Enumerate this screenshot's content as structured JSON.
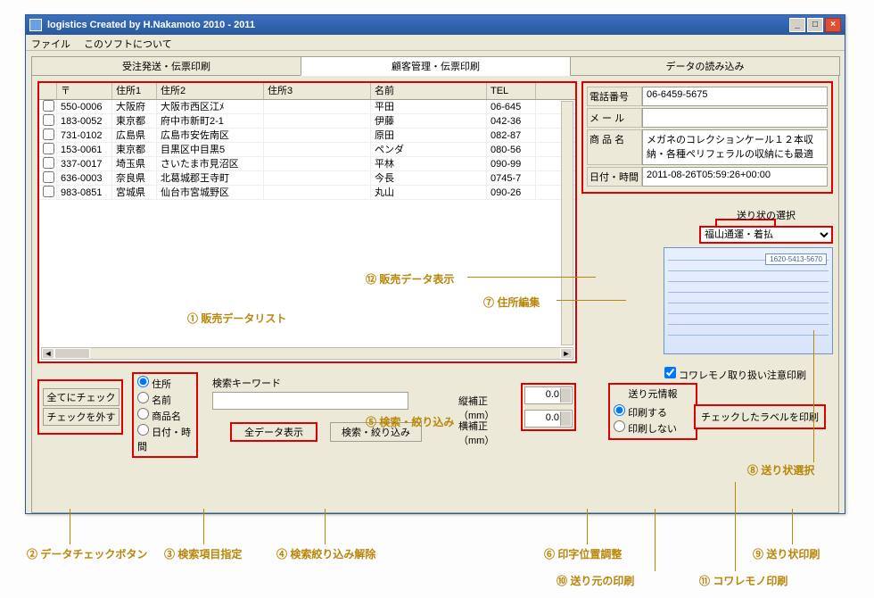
{
  "window": {
    "title": "logistics Created by H.Nakamoto 2010 - 2011"
  },
  "menu": {
    "file": "ファイル",
    "about": "このソフトについて"
  },
  "tabs": {
    "order": "受注発送・伝票印刷",
    "customer": "顧客管理・伝票印刷",
    "import": "データの読み込み"
  },
  "table": {
    "cols": {
      "zip": "〒",
      "a1": "住所1",
      "a2": "住所2",
      "a3": "住所3",
      "name": "名前",
      "tel": "TEL"
    },
    "rows": [
      {
        "zip": "550-0006",
        "a1": "大阪府",
        "a2": "大阪市西区江ﾒ",
        "a3": "",
        "name": "平田",
        "tel": "06-645"
      },
      {
        "zip": "183-0052",
        "a1": "東京都",
        "a2": "府中市新町2-1",
        "a3": "",
        "name": "伊藤",
        "tel": "042-36"
      },
      {
        "zip": "731-0102",
        "a1": "広島県",
        "a2": "広島市安佐南区",
        "a3": "",
        "name": "原田",
        "tel": "082-87"
      },
      {
        "zip": "153-0061",
        "a1": "東京都",
        "a2": "目黒区中目黒5",
        "a3": "",
        "name": "ペンダ",
        "tel": "080-56"
      },
      {
        "zip": "337-0017",
        "a1": "埼玉県",
        "a2": "さいたま市見沼区",
        "a3": "",
        "name": "平林",
        "tel": "090-99"
      },
      {
        "zip": "636-0003",
        "a1": "奈良県",
        "a2": "北葛城郡王寺町",
        "a3": "",
        "name": "今長",
        "tel": "0745-7"
      },
      {
        "zip": "983-0851",
        "a1": "宮城県",
        "a2": "仙台市宮城野区",
        "a3": "",
        "name": "丸山",
        "tel": "090-26"
      }
    ]
  },
  "detail": {
    "tel_label": "電話番号",
    "tel": "06-6459-5675",
    "mail_label": "メ ー ル",
    "mail": "",
    "product_label": "商 品 名",
    "product": "メガネのコレクションケール１２本収納・各種ペリフェラルの収納にも最適",
    "date_label": "日付・時間",
    "date": "2011-08-26T05:59:26+00:00"
  },
  "edit_address": "住所編集",
  "slip_select": {
    "label": "送り状の選択",
    "value": "福山通運・着払"
  },
  "slip": {
    "tracking": "1620-5413-5670"
  },
  "checkbtns": {
    "all": "全てにチェック",
    "none": "チェックを外す"
  },
  "search": {
    "radios": {
      "addr": "住所",
      "name": "名前",
      "product": "商品名",
      "date": "日付・時間"
    },
    "kw_label": "検索キーワード",
    "show_all": "全データ表示",
    "filter": "検索・絞り込み"
  },
  "corr": {
    "v_label": "縦補正（mm）",
    "h_label": "横補正（mm）",
    "v": "0.0",
    "h": "0.0"
  },
  "fragile": "コワレモノ取り扱い注意印刷",
  "sender": {
    "title": "送り元情報",
    "yes": "印刷する",
    "no": "印刷しない"
  },
  "print_btn": "チェックしたラベルを印刷",
  "annotations": {
    "a1": "① 販売データリスト",
    "a2": "② データチェックボタン",
    "a3": "③ 検索項目指定",
    "a4": "④ 検索絞り込み解除",
    "a5": "⑤ 検索・絞り込み",
    "a6": "⑥ 印字位置調整",
    "a7": "⑦ 住所編集",
    "a8": "⑧ 送り状選択",
    "a9": "⑨ 送り状印刷",
    "a10": "⑩ 送り元の印刷",
    "a11": "⑪ コワレモノ印刷",
    "a12": "⑫ 販売データ表示"
  }
}
